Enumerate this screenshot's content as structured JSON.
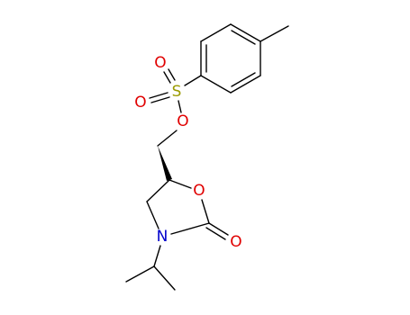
{
  "atoms": [
    "O",
    "O",
    "S",
    "O",
    "O",
    "O",
    "N"
  ]
}
